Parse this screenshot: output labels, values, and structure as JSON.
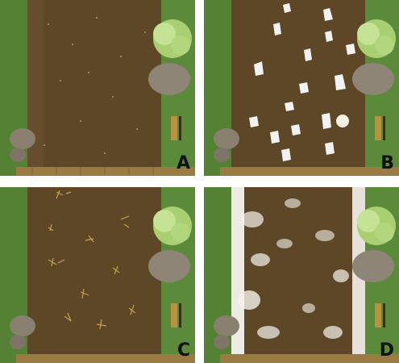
{
  "panels": [
    {
      "id": "A",
      "label": "A",
      "variant": "plain"
    },
    {
      "id": "B",
      "label": "B",
      "variant": "paper-trash"
    },
    {
      "id": "C",
      "label": "C",
      "variant": "golden-litter"
    },
    {
      "id": "D",
      "label": "D",
      "variant": "white-dust"
    }
  ],
  "colors": {
    "grass": "#5b8a3a",
    "soil": "#5e4727",
    "tree": "#b9dc84",
    "rock": "#8f8576",
    "bench": "#b9913f",
    "fence": "#9a7b44",
    "label": "#111111",
    "divider": "#ffffff"
  },
  "icons": [
    "tree-icon",
    "rock-icon",
    "bench-icon",
    "fence-icon"
  ]
}
